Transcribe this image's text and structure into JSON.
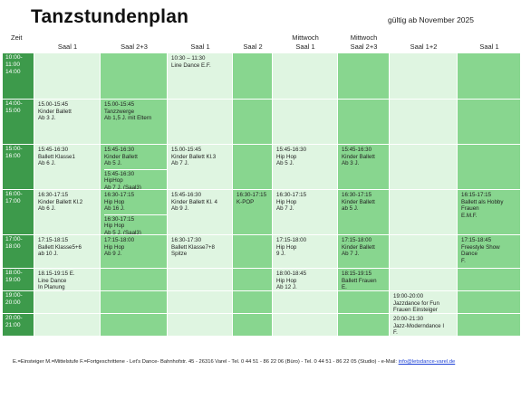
{
  "title": "Tanzstundenplan",
  "valid_from": "gültig ab November 2025",
  "colors": {
    "dark": "#3d9a4b",
    "medium": "#88d68f",
    "light": "#dff5e1",
    "white_row": "#ffffff"
  },
  "header": {
    "zeit": "Zeit",
    "columns": [
      {
        "day": "",
        "room": "Saal 1"
      },
      {
        "day": "",
        "room": "Saal 2+3"
      },
      {
        "day": "",
        "room": "Saal 1"
      },
      {
        "day": "",
        "room": "Saal 2"
      },
      {
        "day": "Mittwoch",
        "room": "Saal 1"
      },
      {
        "day": "Mittwoch",
        "room": "Saal 2+3"
      },
      {
        "day": "",
        "room": "Saal 1+2"
      },
      {
        "day": "",
        "room": "Saal 1"
      }
    ]
  },
  "time_slots": [
    "10:00-\n11:00\n14:00",
    "14:00-\n15:00",
    "15:00-\n16:00",
    "16:00-\n17:00",
    "17:00-\n18:00",
    "18:00-\n19:00",
    "19:00-\n20:00",
    "20:00-\n21:00"
  ],
  "cells": [
    [
      [],
      [],
      [
        "10:30 – 11:30\nLine Dance E.F."
      ],
      [],
      [],
      [],
      [],
      []
    ],
    [
      [
        "15.00-15:45\nKinder Ballett\nAb 3 J."
      ],
      [
        "15.00-15:45\nTanzzwerge\nAb 1,5 J. mit Eltern"
      ],
      [],
      [],
      [],
      [],
      [],
      []
    ],
    [
      [
        "15:45-16:30\nBallett Klasse1\nAb 6 J."
      ],
      [
        "15:45-16:30\nKinder Ballett\nAb 5 J.",
        "15:45-16:30\nHipHop\nAb 7 J. (Saal3)"
      ],
      [
        "15.00-15:45\nKinder Ballett Kl.3\nAb 7 J."
      ],
      [],
      [
        "15:45-16:30\nHip Hop\nAb 5 J."
      ],
      [
        "15:45-16:30\nKinder Ballett\nAb 3 J."
      ],
      [],
      []
    ],
    [
      [
        "16:30-17:15\nKinder Ballett Kl.2\nAb 6 J."
      ],
      [
        "16:30-17:15\nHip Hop\nAb 16 J.",
        "16:30-17:15\nHip Hop\nAb 5 J. (Saal3)"
      ],
      [
        "15:45-16:30\nKinder Ballett Kl. 4\nAb 9 J."
      ],
      [
        "16:30-17:15\nK-POP"
      ],
      [
        "16:30-17:15\nHip Hop\nAb 7 J."
      ],
      [
        "16:30-17:15\nKinder Ballett\nab 5 J."
      ],
      [],
      [
        "16:15-17:15\nBallett als Hobby\nFrauen\nE.M.F."
      ]
    ],
    [
      [
        "17:15-18:15\nBallett Klasse5+6\nab 10 J."
      ],
      [
        "17:15-18:00\nHip Hop\nAb 9 J."
      ],
      [
        "16:30-17:30\nBallett Klasse7+8\nSpitze"
      ],
      [],
      [
        "17:15-18:00\nHip Hop\n9 J."
      ],
      [
        "17:15-18:00\nKinder Ballett\nAb 7 J."
      ],
      [],
      [
        "17:15-18:45\nFreestyle Show\nDance\nF."
      ]
    ],
    [
      [
        "18.15-19:15 E.\nLine Dance\nIn Planung"
      ],
      [],
      [],
      [],
      [
        "18:00-18:45\nHip Hop\nAb 12 J."
      ],
      [
        "18:15-19:15\nBallett Frauen\nE."
      ],
      [],
      []
    ],
    [
      [],
      [],
      [],
      [],
      [],
      [],
      [
        "19:00-20:00\nJazzdance for Fun\nFrauen Einsteiger"
      ],
      []
    ],
    [
      [],
      [],
      [],
      [],
      [],
      [],
      [
        "20:00-21:30\nJazz-Moderndance I\nF."
      ],
      []
    ]
  ],
  "footer": {
    "text": "E.=Einsteiger  M.=Mittelstufe      F.=Fortgeschrittene - Let's Dance- Bahnhofstr. 45 - 26316 Varel - Tel. 0 44 51 - 86 22 06 (Büro)  - Tel. 0 44 51 - 86 22 05 (Studio) - e-Mail: ",
    "email": "info@letsdance-varel.de"
  }
}
